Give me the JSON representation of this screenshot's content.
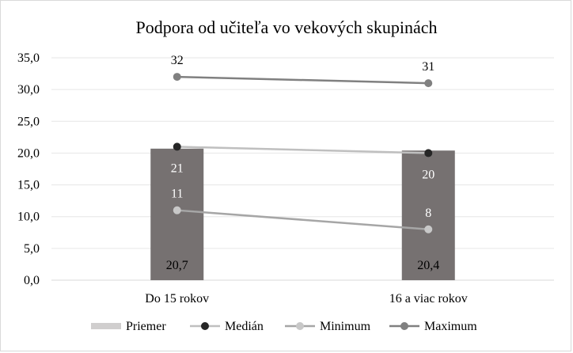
{
  "chart_data": {
    "type": "bar+line",
    "title": "Podpora od učiteľa vo vekových skupinách",
    "categories": [
      "Do 15 rokov",
      "16 a viac rokov"
    ],
    "ylim": [
      0,
      35
    ],
    "yticks": [
      "0,0",
      "5,0",
      "10,0",
      "15,0",
      "20,0",
      "25,0",
      "30,0",
      "35,0"
    ],
    "grid": true,
    "legend_position": "bottom",
    "bar_series": {
      "name": "Priemer",
      "values": [
        20.7,
        20.4
      ],
      "labels": [
        "20,7",
        "20,4"
      ],
      "color": "#767171",
      "legend_color": "#d0cece"
    },
    "line_series": [
      {
        "name": "Medián",
        "values": [
          21,
          20
        ],
        "labels": [
          "21",
          "20"
        ],
        "line_color": "#bfbfbf",
        "marker_color": "#262626",
        "label_color": "#ffffff"
      },
      {
        "name": "Minimum",
        "values": [
          11,
          8
        ],
        "labels": [
          "11",
          "8"
        ],
        "line_color": "#a6a6a6",
        "marker_color": "#c8c8c8",
        "label_color": "#ffffff"
      },
      {
        "name": "Maximum",
        "values": [
          32,
          31
        ],
        "labels": [
          "32",
          "31"
        ],
        "line_color": "#808080",
        "marker_color": "#808080",
        "label_color": "#000000"
      }
    ]
  }
}
